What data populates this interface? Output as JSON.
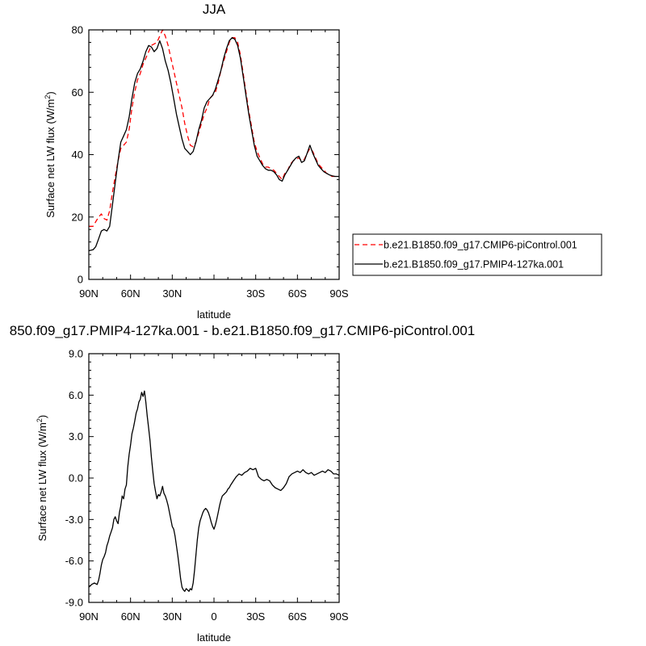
{
  "chart_data": [
    {
      "type": "line",
      "title": "JJA",
      "xlabel": "latitude",
      "ylabel": "Surface net LW flux (W/m",
      "ylabel_sup": "2",
      "ylabel_close": ")",
      "xlim": [
        90,
        -90
      ],
      "ylim": [
        0,
        80
      ],
      "xticks": [
        90,
        60,
        30,
        0,
        -30,
        -60,
        -90
      ],
      "xtick_labels": [
        "90N",
        "60N",
        "30N",
        "",
        "30S",
        "60S",
        "90S"
      ],
      "yticks": [
        0,
        20,
        40,
        60,
        80
      ],
      "ytick_labels": [
        "0",
        "20",
        "40",
        "60",
        "80"
      ],
      "legend_position": "right",
      "x": [
        90,
        87,
        85,
        83,
        81,
        79,
        77,
        75,
        73,
        71,
        69,
        67,
        65,
        63,
        61,
        59,
        57,
        55,
        53,
        51,
        49,
        47,
        45,
        43,
        41,
        39,
        37,
        35,
        33,
        31,
        29,
        27,
        25,
        23,
        21,
        19,
        17,
        15,
        13,
        11,
        9,
        7,
        5,
        3,
        1,
        -1,
        -3,
        -5,
        -7,
        -9,
        -11,
        -13,
        -15,
        -17,
        -19,
        -21,
        -23,
        -25,
        -27,
        -29,
        -31,
        -33,
        -35,
        -37,
        -39,
        -41,
        -43,
        -45,
        -47,
        -49,
        -51,
        -53,
        -55,
        -57,
        -59,
        -61,
        -63,
        -65,
        -67,
        -69,
        -71,
        -73,
        -75,
        -77,
        -79,
        -81,
        -83,
        -85,
        -87,
        -89,
        -90
      ],
      "series": [
        {
          "name": "b.e21.B1850.f09_g17.CMIP6-piControl.001",
          "color": "#ff0000",
          "dash": "dashed",
          "values": [
            17,
            17,
            18.5,
            20,
            21,
            19.5,
            19,
            22,
            28,
            33,
            38,
            42,
            43,
            44,
            48,
            55,
            60,
            64,
            66,
            69,
            71,
            73,
            75,
            75.5,
            76,
            78,
            80,
            78,
            75,
            71,
            67,
            63,
            59,
            55,
            50,
            46,
            43,
            42.5,
            44,
            47,
            50,
            53,
            55,
            58,
            59,
            60,
            63,
            67,
            70,
            73,
            76,
            77.5,
            77.5,
            76,
            72,
            66,
            60,
            54,
            49,
            44,
            41,
            39,
            37,
            36,
            36,
            35.5,
            35,
            34,
            33,
            32,
            34,
            35,
            37,
            38,
            38.5,
            39,
            38,
            38.5,
            40.5,
            42,
            41,
            39,
            37,
            36,
            35,
            34,
            33.5,
            33,
            33,
            33,
            33
          ]
        },
        {
          "name": "b.e21.B1850.f09_g17.PMIP4-127ka.001",
          "color": "#000000",
          "dash": "solid",
          "values": [
            9.2,
            9.5,
            10.5,
            13,
            15.5,
            16,
            15.5,
            17,
            24,
            31,
            38,
            44,
            46,
            48,
            52,
            58,
            63,
            66,
            67.5,
            70,
            73,
            75,
            74.5,
            73,
            74,
            76.5,
            74,
            70,
            67,
            63,
            58,
            53,
            49,
            45,
            42,
            41,
            40,
            41,
            44,
            48,
            51,
            55,
            57,
            58,
            59,
            61,
            64,
            67,
            71,
            74,
            76.5,
            77.5,
            77,
            75,
            71,
            65,
            59,
            53,
            48,
            43,
            39.5,
            38,
            36.5,
            35.5,
            35,
            35,
            34.5,
            33.5,
            32,
            31.5,
            33.5,
            35,
            36.5,
            38,
            39,
            39.5,
            37.5,
            38,
            40.5,
            43,
            40.5,
            38.5,
            36.5,
            35.5,
            34.5,
            34,
            33.5,
            33.2,
            33,
            33,
            33
          ]
        }
      ]
    },
    {
      "type": "line",
      "title": "850.f09_g17.PMIP4-127ka.001 - b.e21.B1850.f09_g17.CMIP6-piControl.001",
      "xlabel": "latitude",
      "ylabel": "Surface net LW flux (W/m",
      "ylabel_sup": "2",
      "ylabel_close": ")",
      "xlim": [
        90,
        -90
      ],
      "ylim": [
        -9,
        9
      ],
      "xticks": [
        90,
        60,
        30,
        0,
        -30,
        -60,
        -90
      ],
      "xtick_labels": [
        "90N",
        "60N",
        "30N",
        "0",
        "30S",
        "60S",
        "90S"
      ],
      "yticks": [
        -9,
        -6,
        -3,
        0,
        3,
        6,
        9
      ],
      "ytick_labels": [
        "-9.0",
        "-6.0",
        "-3.0",
        "0.0",
        "3.0",
        "6.0",
        "9.0"
      ],
      "x": [
        90,
        88,
        86,
        84,
        83,
        82,
        81,
        80,
        79,
        78,
        77,
        76,
        75,
        74,
        73,
        72,
        71,
        70,
        69,
        68,
        67,
        66,
        65,
        64,
        63,
        62,
        61,
        60,
        59,
        58,
        57,
        56,
        55,
        54,
        53,
        52,
        51,
        50,
        49,
        48,
        47,
        46,
        45,
        44,
        43,
        42,
        41,
        40,
        39,
        38,
        37,
        36,
        35,
        34,
        33,
        32,
        31,
        30,
        29,
        28,
        27,
        26,
        25,
        24,
        23,
        22,
        21,
        20,
        19,
        18,
        17,
        16,
        15,
        14,
        13,
        12,
        11,
        10,
        9,
        8,
        7,
        6,
        5,
        4,
        3,
        2,
        1,
        0,
        -1,
        -2,
        -3,
        -4,
        -5,
        -6,
        -7,
        -8,
        -9,
        -10,
        -11,
        -12,
        -14,
        -16,
        -18,
        -20,
        -22,
        -24,
        -26,
        -28,
        -30,
        -32,
        -34,
        -36,
        -38,
        -40,
        -42,
        -44,
        -46,
        -48,
        -50,
        -52,
        -54,
        -56,
        -58,
        -60,
        -62,
        -64,
        -66,
        -68,
        -70,
        -72,
        -74,
        -76,
        -78,
        -80,
        -82,
        -84,
        -86,
        -88,
        -90
      ],
      "series": [
        {
          "name": "",
          "color": "#000000",
          "dash": "solid",
          "values": [
            -7.9,
            -7.7,
            -7.6,
            -7.7,
            -7.4,
            -6.9,
            -6.3,
            -5.9,
            -5.7,
            -5.4,
            -4.9,
            -4.6,
            -4.2,
            -3.9,
            -3.6,
            -3.0,
            -2.8,
            -3.1,
            -3.3,
            -2.5,
            -2.0,
            -1.3,
            -1.5,
            -0.8,
            -0.5,
            0.8,
            1.7,
            2.4,
            3.2,
            3.6,
            4.1,
            4.7,
            5.0,
            5.5,
            5.7,
            6.2,
            5.9,
            6.3,
            5.5,
            4.5,
            3.6,
            2.7,
            1.5,
            0.5,
            -0.4,
            -1.0,
            -1.5,
            -1.2,
            -1.3,
            -1.0,
            -0.6,
            -1.1,
            -1.3,
            -1.6,
            -2.0,
            -2.5,
            -3.0,
            -3.5,
            -3.7,
            -4.2,
            -4.9,
            -5.6,
            -6.4,
            -7.3,
            -7.9,
            -8.1,
            -8.2,
            -8.0,
            -8.1,
            -8.2,
            -8.0,
            -8.1,
            -7.6,
            -6.7,
            -5.6,
            -4.5,
            -3.6,
            -3.1,
            -2.8,
            -2.5,
            -2.3,
            -2.2,
            -2.3,
            -2.5,
            -2.8,
            -3.2,
            -3.5,
            -3.7,
            -3.4,
            -3.0,
            -2.5,
            -2.0,
            -1.6,
            -1.3,
            -1.2,
            -1.1,
            -1.0,
            -0.8,
            -0.7,
            -0.5,
            -0.2,
            0.1,
            0.3,
            0.2,
            0.4,
            0.5,
            0.7,
            0.6,
            0.7,
            0.1,
            -0.1,
            -0.2,
            -0.1,
            -0.2,
            -0.5,
            -0.7,
            -0.8,
            -0.9,
            -0.7,
            -0.4,
            0.1,
            0.3,
            0.4,
            0.5,
            0.4,
            0.6,
            0.4,
            0.3,
            0.4,
            0.2,
            0.3,
            0.4,
            0.5,
            0.4,
            0.6,
            0.5,
            0.3,
            0.3,
            0.2
          ]
        }
      ]
    }
  ]
}
